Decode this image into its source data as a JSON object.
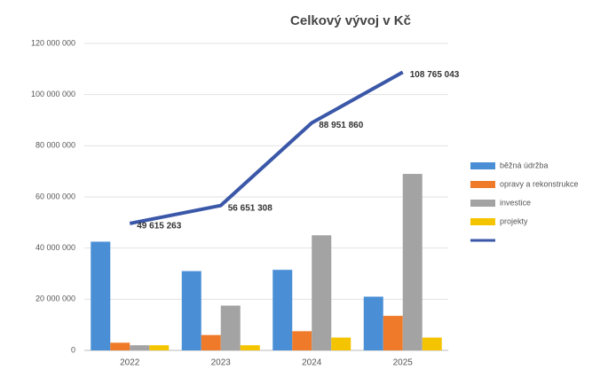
{
  "chart_data": {
    "type": "bar",
    "title": "Celkový vývoj v Kč",
    "categories": [
      "2022",
      "2023",
      "2024",
      "2025"
    ],
    "series": [
      {
        "name": "běžná údržba",
        "color": "#4a8fd6",
        "values": [
          42500000,
          31000000,
          31500000,
          21000000
        ]
      },
      {
        "name": "opravy a rekonstrukce",
        "color": "#ee7a2a",
        "values": [
          3000000,
          6000000,
          7500000,
          13500000
        ]
      },
      {
        "name": "investice",
        "color": "#a3a3a3",
        "values": [
          2000000,
          17500000,
          45000000,
          69000000
        ]
      },
      {
        "name": "projekty",
        "color": "#f5c400",
        "values": [
          2000000,
          2000000,
          5000000,
          5000000
        ]
      },
      {
        "type": "line",
        "color": "#3a57a8",
        "values": [
          49615263,
          56651308,
          88951860,
          108765043
        ],
        "value_labels": [
          "49 615 263",
          "56 651 308",
          "88 951 860",
          "108 765 043"
        ]
      }
    ],
    "ylim": [
      0,
      120000000
    ],
    "yticks": [
      {
        "value": 0,
        "label": "0"
      },
      {
        "value": 20000000,
        "label": "20 000 000"
      },
      {
        "value": 40000000,
        "label": "40 000 000"
      },
      {
        "value": 60000000,
        "label": "60 000 000"
      },
      {
        "value": 80000000,
        "label": "80 000 000"
      },
      {
        "value": 100000000,
        "label": "100 000 000"
      },
      {
        "value": 120000000,
        "label": "120 000 000"
      }
    ],
    "grid": true,
    "legend": "right"
  }
}
